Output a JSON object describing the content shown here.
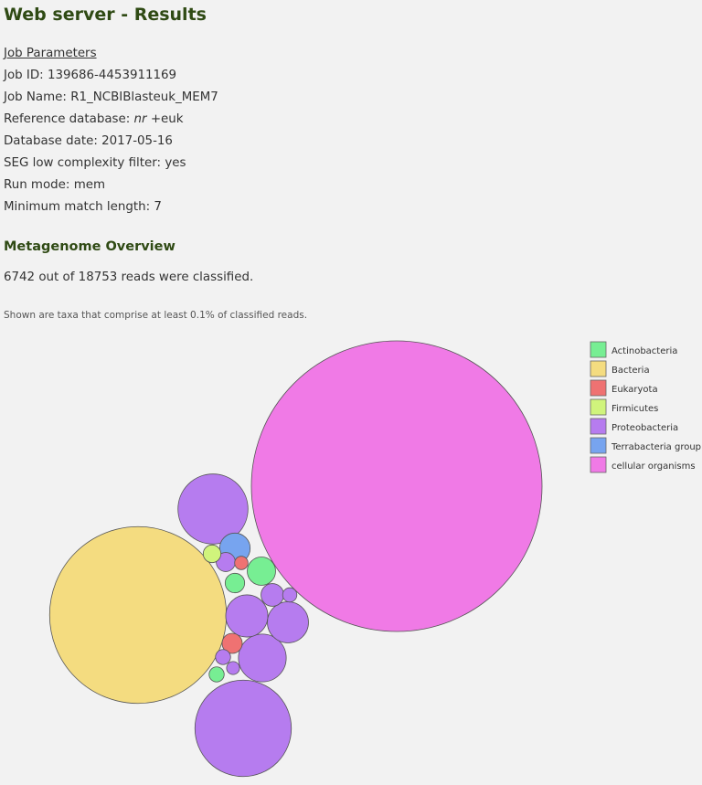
{
  "title": "Web server - Results",
  "job_parameters": {
    "heading": "Job Parameters",
    "job_id_label": "Job ID:",
    "job_id": "139686-4453911169",
    "job_name_label": "Job Name:",
    "job_name": "R1_NCBIBlasteuk_MEM7",
    "reference_db_label": "Reference database:",
    "reference_db_italic": "nr",
    "reference_db_suffix": "+euk",
    "db_date_label": "Database date:",
    "db_date": "2017-05-16",
    "seg_label": "SEG low complexity filter:",
    "seg_value": "yes",
    "run_mode_label": "Run mode:",
    "run_mode": "mem",
    "min_match_label": "Minimum match length:",
    "min_match": "7"
  },
  "overview": {
    "heading": "Metagenome Overview",
    "summary": "6742 out of 18753 reads were classified.",
    "note": "Shown are taxa that comprise at least 0.1% of classified reads."
  },
  "colors": {
    "Actinobacteria": "#77ee93",
    "Bacteria": "#f4dc80",
    "Eukaryota": "#ef7272",
    "Firmicutes": "#d0f47c",
    "Proteobacteria": "#b67cef",
    "Terrabacteria group": "#77a4ef",
    "cellular organisms": "#f07ae6"
  },
  "chart_data": {
    "type": "bubble",
    "legend": [
      "Actinobacteria",
      "Bacteria",
      "Eukaryota",
      "Firmicutes",
      "Proteobacteria",
      "Terrabacteria group",
      "cellular organisms"
    ],
    "bubbles": [
      {
        "group": "cellular organisms",
        "relative_size": 1.0
      },
      {
        "group": "Bacteria",
        "relative_size": 0.37
      },
      {
        "group": "Proteobacteria",
        "relative_size": 0.11
      },
      {
        "group": "Proteobacteria",
        "relative_size": 0.058
      },
      {
        "group": "Proteobacteria",
        "relative_size": 0.027
      },
      {
        "group": "Proteobacteria",
        "relative_size": 0.021
      },
      {
        "group": "Proteobacteria",
        "relative_size": 0.02
      },
      {
        "group": "Terrabacteria group",
        "relative_size": 0.011
      },
      {
        "group": "Actinobacteria",
        "relative_size": 0.0095
      },
      {
        "group": "Proteobacteria",
        "relative_size": 0.0061
      },
      {
        "group": "Eukaryota",
        "relative_size": 0.0048
      },
      {
        "group": "Actinobacteria",
        "relative_size": 0.0045
      },
      {
        "group": "Proteobacteria",
        "relative_size": 0.0043
      },
      {
        "group": "Firmicutes",
        "relative_size": 0.0037
      },
      {
        "group": "Proteobacteria",
        "relative_size": 0.0027
      },
      {
        "group": "Actinobacteria",
        "relative_size": 0.0027
      },
      {
        "group": "Proteobacteria",
        "relative_size": 0.0024
      },
      {
        "group": "Eukaryota",
        "relative_size": 0.0021
      },
      {
        "group": "Proteobacteria",
        "relative_size": 0.002
      }
    ]
  }
}
